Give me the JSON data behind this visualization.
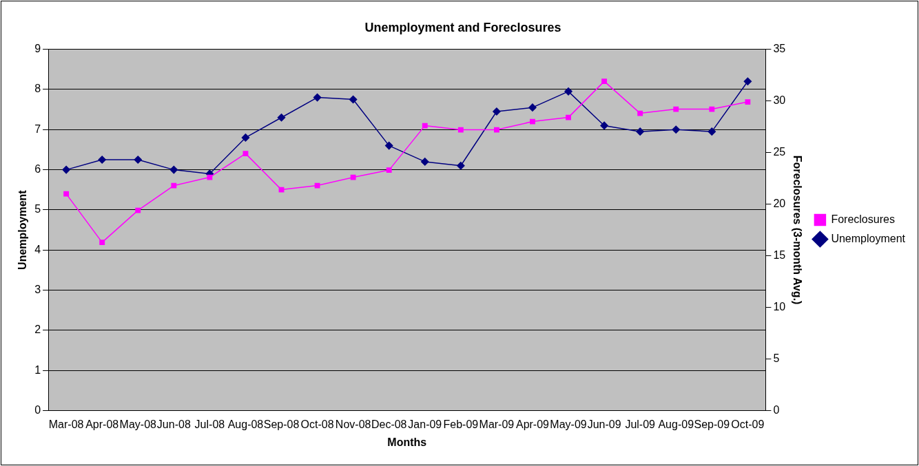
{
  "chart_data": {
    "type": "line",
    "title": "Unemployment and Foreclosures",
    "xlabel": "Months",
    "ylabel": "Unemployment",
    "y2label": "Foreclosures (3-month Avg.)",
    "categories": [
      "Mar-08",
      "Apr-08",
      "May-08",
      "Jun-08",
      "Jul-08",
      "Aug-08",
      "Sep-08",
      "Oct-08",
      "Nov-08",
      "Dec-08",
      "Jan-09",
      "Feb-09",
      "Mar-09",
      "Apr-09",
      "May-09",
      "Jun-09",
      "Jul-09",
      "Aug-09",
      "Sep-09",
      "Oct-09"
    ],
    "series": [
      {
        "name": "Foreclosures",
        "color": "#ff00ff",
        "axis": "y2",
        "marker": "square",
        "values": [
          21.0,
          16.3,
          19.4,
          21.8,
          22.6,
          24.9,
          21.4,
          21.8,
          22.6,
          23.3,
          27.6,
          27.2,
          27.2,
          28.0,
          28.4,
          31.9,
          28.8,
          29.2,
          29.2,
          29.9
        ]
      },
      {
        "name": "Unemployment",
        "color": "#000080",
        "marker": "diamond",
        "values": [
          6.0,
          6.25,
          6.25,
          6.0,
          5.9,
          6.8,
          7.3,
          7.8,
          7.75,
          6.6,
          6.2,
          6.1,
          7.45,
          7.55,
          7.95,
          7.1,
          6.95,
          7.0,
          6.95,
          8.2
        ]
      }
    ],
    "ylim": [
      0,
      9
    ],
    "yticks": [
      0,
      1,
      2,
      3,
      4,
      5,
      6,
      7,
      8,
      9
    ],
    "y2lim": [
      0,
      35
    ],
    "y2ticks": [
      0,
      5,
      10,
      15,
      20,
      25,
      30,
      35
    ],
    "grid": "y",
    "legend": "right",
    "line_style": "solid"
  }
}
